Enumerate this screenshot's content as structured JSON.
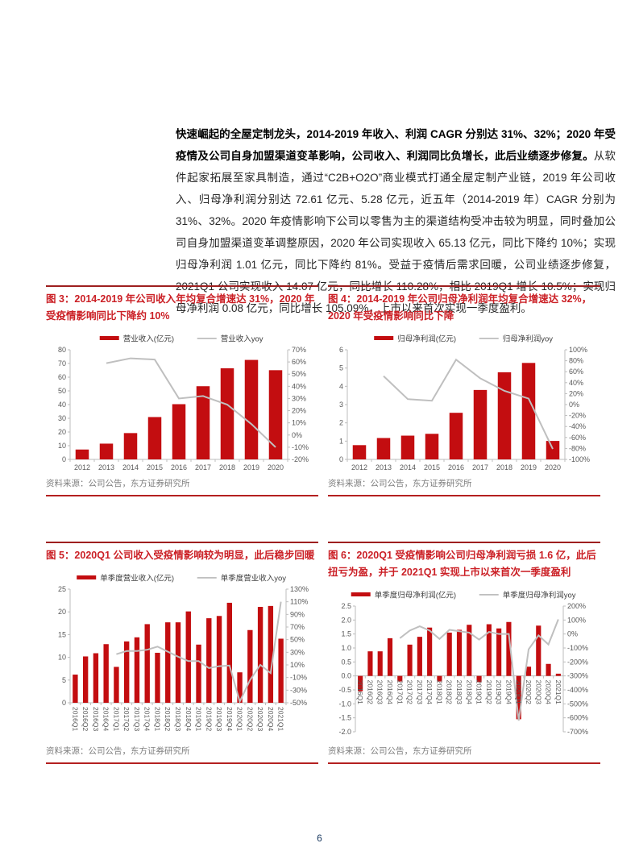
{
  "page_number": "6",
  "colors": {
    "bar_red": "#C30D10",
    "line_gray": "#BFBFBF",
    "title_red": "#CB2026",
    "rule_red": "#9E1F1F",
    "source_underline_red": "#B42020",
    "axis_gray": "#BDBDBD",
    "tick_text_gray": "#595959",
    "page_number_blue": "#17375E"
  },
  "paragraph": {
    "bold": "快速崛起的全屋定制龙头，2014-2019 年收入、利润 CAGR 分别达 31%、32%；2020 年受疫情及公司自身加盟渠道变革影响，公司收入、利润同比负增长，此后业绩逐步修复。",
    "regular": "从软件起家拓展至家具制造，通过“C2B+O2O”商业模式打通全屋定制产业链，2019 年公司收入、归母净利润分别达 72.61 亿元、5.28 亿元，近五年（2014-2019 年）CAGR 分别为 31%、32%。2020 年疫情影响下公司以零售为主的渠道结构受冲击较为明显，同时叠加公司自身加盟渠道变革调整原因，2020 年公司实现收入 65.13 亿元，同比下降约 10%；实现归母净利润 1.01 亿元，同比下降约 81%。受益于疫情后需求回暖，公司业绩逐步修复，2021Q1 公司实现收入 14.07 亿元，同比增长 110.28%，相比 2019Q1 增长 10.5%；实现归母净利润 0.08 亿元，同比增长 105.09%，上市以来首次实现一季度盈利。"
  },
  "source_label": "资料来源：公司公告，东方证券研究所",
  "chart_data": [
    {
      "type": "bar+line",
      "title": "图 3：2014-2019 年公司收入年均复合增速达 31%，2020 年受疫情影响同比下降约 10%",
      "categories": [
        "2012",
        "2013",
        "2014",
        "2015",
        "2016",
        "2017",
        "2018",
        "2019",
        "2020"
      ],
      "series": [
        {
          "name": "营业收入(亿元)",
          "kind": "bar",
          "axis": "left",
          "values": [
            7.2,
            11.5,
            19.2,
            30.9,
            40.3,
            53.4,
            66.5,
            72.6,
            65.1
          ]
        },
        {
          "name": "营业收入yoy",
          "kind": "line",
          "axis": "right",
          "values": [
            null,
            59,
            63,
            62,
            30,
            32,
            25,
            9,
            -10
          ]
        }
      ],
      "left_axis": {
        "min": 0,
        "max": 80,
        "step": 10,
        "decimals": 0
      },
      "right_axis": {
        "min": -20,
        "max": 70,
        "step": 10,
        "suffix": "%"
      },
      "x_rotated": false,
      "xlabels_at_zero": false,
      "grid": false,
      "legend_position": "top",
      "inset": {
        "l": 30,
        "r": 38,
        "t": 24,
        "b": 18
      }
    },
    {
      "type": "bar+line",
      "title": "图 4：2014-2019 年公司归母净利润年均复合增速达 32%，2020 年受疫情影响同比下降",
      "categories": [
        "2012",
        "2013",
        "2014",
        "2015",
        "2016",
        "2017",
        "2018",
        "2019",
        "2020"
      ],
      "series": [
        {
          "name": "归母净利润(亿元)",
          "kind": "bar",
          "axis": "left",
          "values": [
            0.78,
            1.17,
            1.3,
            1.4,
            2.55,
            3.8,
            4.77,
            5.28,
            1.01
          ]
        },
        {
          "name": "归母净利润yoy",
          "kind": "line",
          "axis": "right",
          "values": [
            null,
            52,
            10,
            7,
            82,
            48,
            25,
            11,
            -81
          ]
        }
      ],
      "left_axis": {
        "min": 0,
        "max": 6,
        "step": 1,
        "decimals": 0
      },
      "right_axis": {
        "min": -100,
        "max": 100,
        "step": 20,
        "suffix": "%"
      },
      "x_rotated": false,
      "xlabels_at_zero": false,
      "grid": false,
      "legend_position": "top",
      "inset": {
        "l": 24,
        "r": 44,
        "t": 24,
        "b": 18
      }
    },
    {
      "type": "bar+line",
      "title": "图 5：2020Q1 公司收入受疫情影响较为明显，此后稳步回暖",
      "categories": [
        "2016Q1",
        "2016Q2",
        "2016Q3",
        "2016Q4",
        "2017Q1",
        "2017Q2",
        "2017Q3",
        "2017Q4",
        "2018Q1",
        "2018Q2",
        "2018Q3",
        "2018Q4",
        "2019Q1",
        "2019Q2",
        "2019Q3",
        "2019Q4",
        "2020Q1",
        "2020Q2",
        "2020Q3",
        "2020Q4",
        "2021Q1"
      ],
      "series": [
        {
          "name": "单季度营业收入(亿元)",
          "kind": "bar",
          "axis": "left",
          "values": [
            6.2,
            10.2,
            10.9,
            12.9,
            7.9,
            13.5,
            14.4,
            17.3,
            11.0,
            17.7,
            17.7,
            20.1,
            12.8,
            18.6,
            19.1,
            22.0,
            6.7,
            16.0,
            21.1,
            21.3,
            14.1
          ]
        },
        {
          "name": "单季度营业收入yoy",
          "kind": "line",
          "axis": "right",
          "values": [
            null,
            null,
            null,
            null,
            27,
            32,
            32,
            34,
            39,
            31,
            23,
            16,
            16,
            5,
            8,
            9,
            -48,
            -14,
            10,
            -3,
            110
          ]
        }
      ],
      "left_axis": {
        "min": 0,
        "max": 25,
        "step": 5,
        "decimals": 0
      },
      "right_axis": {
        "min": -50,
        "max": 130,
        "step": 20,
        "suffix": "%"
      },
      "x_rotated": true,
      "xlabels_at_zero": false,
      "grid": false,
      "legend_position": "top",
      "inset": {
        "l": 30,
        "r": 40,
        "t": 24,
        "b": 48
      }
    },
    {
      "type": "bar+line",
      "title": "图 6：2020Q1 受疫情影响公司归母净利润亏损 1.6 亿，此后扭亏为盈，并于 2021Q1 实现上市以来首次一季度盈利",
      "categories": [
        "2016Q1",
        "2016Q2",
        "2016Q3",
        "2016Q4",
        "2017Q1",
        "2017Q2",
        "2017Q3",
        "2017Q4",
        "2018Q1",
        "2018Q2",
        "2018Q3",
        "2018Q4",
        "2019Q1",
        "2019Q2",
        "2019Q3",
        "2019Q4",
        "2020Q1",
        "2020Q2",
        "2020Q3",
        "2020Q4",
        "2021Q1"
      ],
      "series": [
        {
          "name": "单季度归母净利润(亿元)",
          "kind": "bar",
          "axis": "left",
          "values": [
            -0.55,
            0.88,
            0.88,
            1.35,
            -0.2,
            1.12,
            1.4,
            1.73,
            -0.2,
            1.55,
            1.65,
            1.83,
            -0.22,
            1.85,
            1.7,
            1.93,
            -1.55,
            0.33,
            1.8,
            0.43,
            0.08
          ]
        },
        {
          "name": "单季度归母净利润yoy",
          "kind": "line",
          "axis": "right",
          "values": [
            null,
            null,
            null,
            null,
            -30,
            25,
            55,
            25,
            -35,
            30,
            20,
            10,
            -40,
            15,
            0,
            0,
            -620,
            -110,
            -10,
            -75,
            105
          ]
        }
      ],
      "left_axis": {
        "min": -2.0,
        "max": 2.5,
        "step": 0.5,
        "decimals": 1
      },
      "right_axis": {
        "min": -700,
        "max": 200,
        "step": 100,
        "suffix": "%"
      },
      "x_rotated": true,
      "xlabels_at_zero": true,
      "grid": false,
      "legend_position": "top",
      "inset": {
        "l": 34,
        "r": 46,
        "t": 24,
        "b": 12
      }
    }
  ]
}
